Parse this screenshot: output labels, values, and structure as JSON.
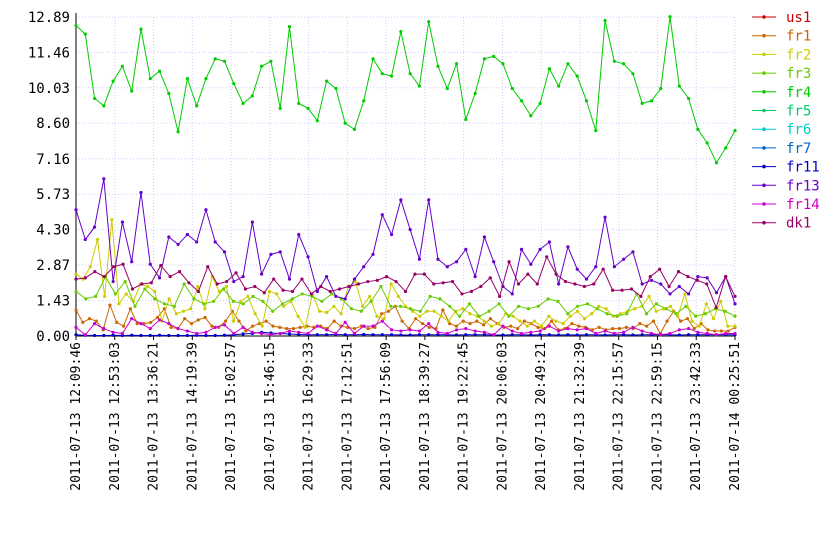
{
  "chart_data": {
    "type": "line",
    "title": "",
    "xlabel": "",
    "ylabel": "",
    "ylim": [
      0,
      12.89
    ],
    "y_ticks": [
      "0.00",
      "1.43",
      "2.87",
      "4.30",
      "5.73",
      "7.16",
      "8.60",
      "10.03",
      "11.46",
      "12.89"
    ],
    "y_tick_values": [
      0,
      1.43,
      2.87,
      4.3,
      5.73,
      7.16,
      8.6,
      10.03,
      11.46,
      12.89
    ],
    "x_tick_labels": [
      "2011-07-13 12:09:46",
      "2011-07-13 12:53:03",
      "2011-07-13 13:36:21",
      "2011-07-13 14:19:39",
      "2011-07-13 15:02:57",
      "2011-07-13 15:46:15",
      "2011-07-13 16:29:33",
      "2011-07-13 17:12:51",
      "2011-07-13 17:56:09",
      "2011-07-13 18:39:27",
      "2011-07-13 19:22:45",
      "2011-07-13 20:06:03",
      "2011-07-13 20:49:21",
      "2011-07-13 21:32:39",
      "2011-07-13 22:15:57",
      "2011-07-13 22:59:15",
      "2011-07-13 23:42:33",
      "2011-07-14 00:25:51"
    ],
    "x_tick_index": [
      0,
      6,
      12,
      18,
      24,
      30,
      36,
      42,
      48,
      54,
      60,
      66,
      72,
      78,
      84,
      90,
      96,
      102
    ],
    "grid": true,
    "legend_position": "right",
    "series": [
      {
        "name": "us1",
        "color": "#cc0000",
        "values": []
      },
      {
        "name": "fr1",
        "color": "#cc6600",
        "values": [
          1.05,
          0.55,
          0.7,
          0.6,
          0.25,
          1.25,
          0.55,
          0.4,
          1.1,
          0.5,
          0.5,
          0.55,
          0.75,
          1.1,
          0.35,
          0.3,
          0.7,
          0.5,
          0.65,
          0.75,
          0.4,
          0.35,
          0.6,
          1.0,
          0.6,
          0.2,
          0.4,
          0.5,
          0.6,
          0.4,
          0.35,
          0.3,
          0.3,
          0.35,
          0.4,
          0.35,
          0.4,
          0.3,
          0.6,
          0.4,
          0.35,
          0.3,
          0.4,
          0.3,
          0.35,
          0.9,
          1.0,
          1.2,
          0.6,
          0.3,
          0.7,
          0.5,
          0.35,
          0.3,
          1.05,
          0.5,
          0.4,
          0.6,
          0.5,
          0.6,
          0.45,
          0.7,
          0.5,
          0.35,
          0.4,
          0.3,
          0.6,
          0.5,
          0.35,
          0.3,
          0.6,
          0.25,
          0.3,
          0.5,
          0.4,
          0.35,
          0.25,
          0.35,
          0.25,
          0.3,
          0.3,
          0.35,
          0.3,
          0.5,
          0.4,
          0.6,
          0.1,
          0.6,
          1.0,
          0.6,
          0.7,
          0.3,
          0.5,
          0.25,
          0.2,
          0.2,
          0.2,
          0.35
        ],
        "values_note": ""
      },
      {
        "name": "fr2",
        "color": "#cccc00",
        "values": [
          2.5,
          2.3,
          2.8,
          3.9,
          1.6,
          4.7,
          1.3,
          1.7,
          1.4,
          2.1,
          2.0,
          1.8,
          0.6,
          1.5,
          0.9,
          1.0,
          1.1,
          2.0,
          1.1,
          2.4,
          1.8,
          2.0,
          0.6,
          1.4,
          1.6,
          0.9,
          0.4,
          1.8,
          1.7,
          1.2,
          1.4,
          0.8,
          0.35,
          1.7,
          1.0,
          0.95,
          1.2,
          0.9,
          2.0,
          2.2,
          1.2,
          1.6,
          0.8,
          0.7,
          2.1,
          1.6,
          1.2,
          1.0,
          0.8,
          1.0,
          1.0,
          0.8,
          0.6,
          1.0,
          1.1,
          0.9,
          0.8,
          0.6,
          0.4,
          0.5,
          0.9,
          0.8,
          0.6,
          0.4,
          0.6,
          0.4,
          0.8,
          0.6,
          0.5,
          0.8,
          1.0,
          0.7,
          0.9,
          1.2,
          1.1,
          0.8,
          0.9,
          1.0,
          1.1,
          1.2,
          1.6,
          1.0,
          1.1,
          1.2,
          0.8,
          1.7,
          0.6,
          0.4,
          1.3,
          0.7,
          1.4,
          0.4,
          0.4
        ]
      },
      {
        "name": "fr3",
        "color": "#66cc00",
        "values": [
          1.8,
          1.5,
          1.6,
          2.4,
          1.7,
          2.2,
          1.2,
          1.9,
          1.5,
          1.3,
          1.2,
          2.1,
          1.5,
          1.3,
          1.4,
          1.9,
          1.4,
          1.3,
          1.6,
          1.4,
          1.0,
          1.3,
          1.5,
          1.7,
          1.6,
          1.4,
          1.7,
          1.5,
          1.1,
          1.0,
          1.4,
          2.0,
          1.2,
          1.2,
          1.1,
          1.0,
          1.6,
          1.5,
          1.2,
          0.8,
          1.3,
          0.8,
          1.0,
          1.3,
          0.8,
          1.2,
          1.1,
          1.2,
          1.5,
          1.4,
          0.9,
          1.2,
          1.3,
          1.1,
          0.9,
          0.8,
          0.9,
          1.7,
          0.9,
          1.3,
          1.1,
          0.9,
          1.2,
          0.8,
          0.9,
          1.1,
          1.0,
          0.8
        ]
      },
      {
        "name": "fr4",
        "color": "#00cc00",
        "values": [
          12.55,
          12.2,
          9.6,
          9.3,
          10.3,
          10.9,
          9.9,
          12.4,
          10.4,
          10.7,
          9.8,
          8.25,
          10.4,
          9.3,
          10.4,
          11.2,
          11.1,
          10.2,
          9.4,
          9.7,
          10.9,
          11.1,
          9.2,
          12.5,
          9.4,
          9.2,
          8.7,
          10.3,
          10.0,
          8.6,
          8.35,
          9.5,
          11.2,
          10.6,
          10.5,
          12.3,
          10.6,
          10.1,
          12.7,
          10.9,
          10.0,
          11.0,
          8.75,
          9.8,
          11.2,
          11.3,
          11.0,
          10.0,
          9.5,
          8.9,
          9.4,
          10.8,
          10.1,
          11.0,
          10.5,
          9.5,
          8.3,
          12.75,
          11.1,
          11.0,
          10.6,
          9.4,
          9.5,
          10.0,
          12.9,
          10.1,
          9.6,
          8.35,
          7.8,
          7.0,
          7.6,
          8.3
        ]
      },
      {
        "name": "fr5",
        "color": "#00cc66",
        "values": []
      },
      {
        "name": "fr6",
        "color": "#00cccc",
        "values": []
      },
      {
        "name": "fr7",
        "color": "#0066cc",
        "values": []
      },
      {
        "name": "fr11",
        "color": "#0000cc",
        "values": [
          0.05,
          0.03,
          0.02,
          0.02,
          0.03,
          0.02,
          0.03,
          0.02,
          0.02,
          0.03,
          0.02,
          0.02,
          0.02,
          0.03,
          0.02,
          0.02,
          0.03,
          0.05,
          0.08,
          0.1,
          0.15,
          0.12,
          0.1,
          0.08,
          0.06,
          0.05,
          0.05,
          0.05,
          0.06,
          0.05,
          0.05,
          0.06,
          0.05,
          0.05,
          0.05,
          0.04,
          0.04,
          0.05,
          0.05,
          0.05,
          0.05,
          0.04,
          0.05,
          0.05,
          0.05,
          0.04,
          0.04,
          0.05,
          0.05,
          0.04,
          0.05,
          0.05,
          0.04,
          0.05,
          0.04,
          0.05,
          0.05,
          0.04,
          0.05,
          0.05,
          0.04,
          0.05,
          0.05,
          0.05,
          0.05,
          0.04,
          0.05,
          0.05,
          0.05,
          0.05,
          0.05,
          0.05
        ]
      },
      {
        "name": "fr13",
        "color": "#6600cc",
        "values": [
          5.1,
          3.9,
          4.4,
          6.35,
          2.2,
          4.6,
          3.0,
          5.8,
          2.9,
          2.35,
          4.0,
          3.7,
          4.1,
          3.8,
          5.1,
          3.8,
          3.4,
          2.2,
          2.4,
          4.6,
          2.5,
          3.3,
          3.4,
          2.3,
          4.1,
          3.2,
          1.8,
          2.4,
          1.6,
          1.5,
          2.3,
          2.8,
          3.3,
          4.9,
          4.1,
          5.5,
          4.3,
          3.1,
          5.5,
          3.1,
          2.8,
          3.0,
          3.5,
          2.4,
          4.0,
          3.0,
          2.0,
          1.7,
          3.5,
          2.9,
          3.5,
          3.8,
          2.1,
          3.6,
          2.7,
          2.3,
          2.8,
          4.8,
          2.8,
          3.1,
          3.4,
          2.1,
          2.25,
          2.1,
          1.7,
          2.0,
          1.7,
          2.4,
          2.35,
          1.75,
          2.4,
          1.3
        ]
      },
      {
        "name": "fr14",
        "color": "#cc00cc",
        "values": [
          0.35,
          0.05,
          0.5,
          0.3,
          0.15,
          0.1,
          0.7,
          0.5,
          0.3,
          0.65,
          0.5,
          0.3,
          0.2,
          0.1,
          0.15,
          0.35,
          0.45,
          0.1,
          0.35,
          0.15,
          0.1,
          0.05,
          0.1,
          0.2,
          0.15,
          0.1,
          0.4,
          0.25,
          0.1,
          0.55,
          0.1,
          0.4,
          0.4,
          0.6,
          0.25,
          0.2,
          0.25,
          0.2,
          0.5,
          0.15,
          0.1,
          0.25,
          0.3,
          0.2,
          0.15,
          0.05,
          0.4,
          0.2,
          0.1,
          0.15,
          0.2,
          0.4,
          0.2,
          0.3,
          0.25,
          0.3,
          0.1,
          0.2,
          0.1,
          0.15,
          0.35,
          0.2,
          0.1,
          0.05,
          0.1,
          0.25,
          0.3,
          0.15,
          0.1,
          0.05,
          0.1,
          0.1
        ]
      },
      {
        "name": "dk1",
        "color": "#990066",
        "values": [
          2.3,
          2.35,
          2.6,
          2.4,
          2.8,
          2.9,
          1.9,
          2.1,
          2.15,
          2.85,
          2.4,
          2.6,
          2.15,
          1.8,
          2.8,
          2.1,
          2.2,
          2.55,
          1.9,
          2.0,
          1.75,
          2.3,
          1.85,
          1.8,
          2.3,
          1.7,
          2.0,
          1.8,
          1.9,
          2.0,
          2.1,
          2.2,
          2.25,
          2.4,
          2.2,
          1.8,
          2.5,
          2.5,
          2.1,
          2.15,
          2.2,
          1.7,
          1.8,
          2.0,
          2.35,
          1.6,
          3.0,
          2.1,
          2.5,
          2.1,
          3.2,
          2.5,
          2.2,
          2.1,
          2.0,
          2.1,
          2.7,
          1.85,
          1.85,
          1.9,
          1.6,
          2.4,
          2.7,
          2.0,
          2.6,
          2.4,
          2.25,
          2.1,
          1.15,
          2.4,
          1.6
        ]
      }
    ]
  }
}
